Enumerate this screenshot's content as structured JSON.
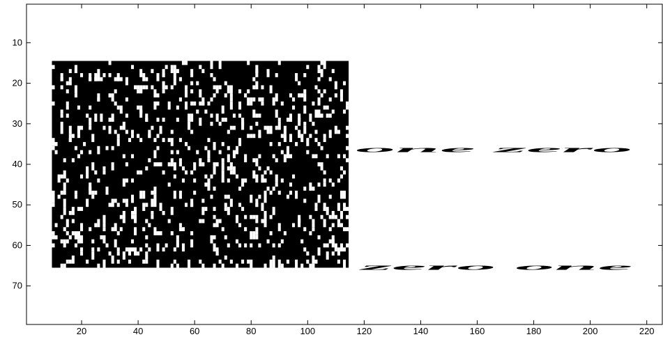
{
  "chart_data": {
    "type": "image",
    "xlim": [
      0.5,
      225.5
    ],
    "ylim": [
      0.5,
      79.5
    ],
    "xticks": [
      20,
      40,
      60,
      80,
      100,
      120,
      140,
      160,
      180,
      200,
      220
    ],
    "yticks": [
      10,
      20,
      30,
      40,
      50,
      60,
      70
    ],
    "y_reversed": true,
    "words": [
      "one zero",
      "zero one"
    ]
  }
}
